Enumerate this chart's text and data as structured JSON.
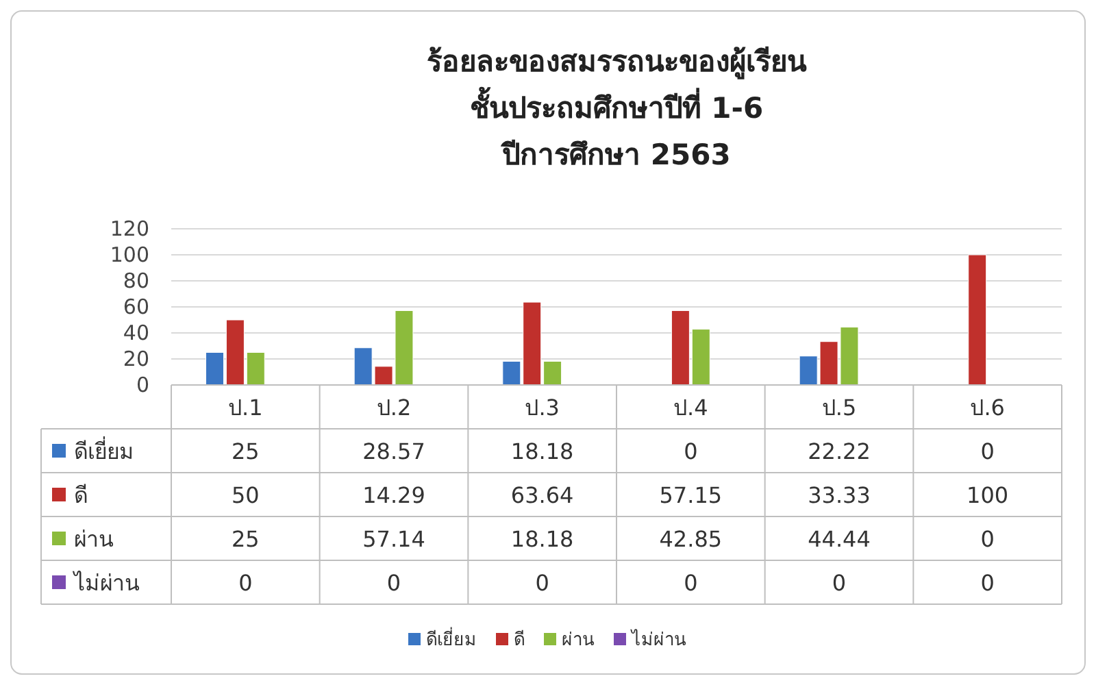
{
  "chart_data": {
    "type": "bar",
    "title": "ร้อยละของสมรรถนะของผู้เรียน\nชั้นประถมศึกษาปีที่ 1-6\nปีการศึกษา 2563",
    "categories": [
      "ป.1",
      "ป.2",
      "ป.3",
      "ป.4",
      "ป.5",
      "ป.6"
    ],
    "series": [
      {
        "name": "ดีเยี่ยม",
        "color": "#3a76c4",
        "values": [
          25,
          28.57,
          18.18,
          0,
          22.22,
          0
        ]
      },
      {
        "name": "ดี",
        "color": "#c0302c",
        "values": [
          50,
          14.29,
          63.64,
          57.15,
          33.33,
          100
        ]
      },
      {
        "name": "ผ่าน",
        "color": "#8cbb3c",
        "values": [
          25,
          57.14,
          18.18,
          42.85,
          44.44,
          0
        ]
      },
      {
        "name": "ไม่ผ่าน",
        "color": "#7a4bb0",
        "values": [
          0,
          0,
          0,
          0,
          0,
          0
        ]
      }
    ],
    "ylim": [
      0,
      120
    ],
    "yticks": [
      0,
      20,
      40,
      60,
      80,
      100,
      120
    ],
    "grid": "y",
    "legend": "bottom",
    "data_labels": true
  }
}
